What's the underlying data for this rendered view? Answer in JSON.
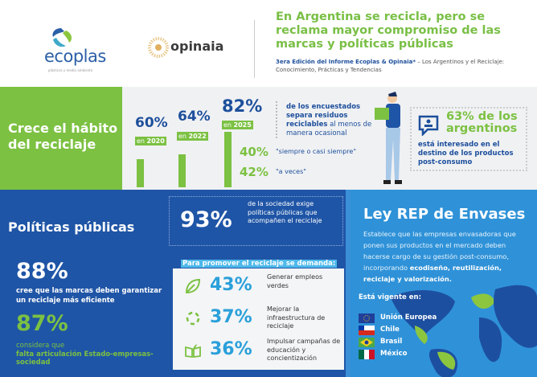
{
  "header": {
    "ecoplas_logo": "ecoplas",
    "ecoplas_tagline": "plásticos y medio ambiente",
    "opinaia_logo": "opinaia",
    "title": "En Argentina se recicla, pero se reclama mayor compromiso de las marcas y políticas públicas",
    "subtitle_bold": "3era Edición del  Informe Ecoplas & Opinaia*",
    "subtitle_rest": " – Los Argentinos y el Reciclaje: Conocimiento, Prácticas y Tendencias"
  },
  "habit": {
    "heading": "Crece el hábito del reciclaje",
    "years": [
      {
        "pct": "60%",
        "prefix": "en",
        "year": "2020",
        "value": 60
      },
      {
        "pct": "64%",
        "prefix": "en",
        "year": "2022",
        "value": 64
      },
      {
        "pct": "82%",
        "prefix": "en",
        "year": "2025",
        "value": 82
      }
    ],
    "desc_1": "de los encuestados separa residuos ",
    "desc_bold": "reciclables",
    "desc_2": " al menos de manera ocasional",
    "breakdown": [
      {
        "pct": "40%",
        "label": "\"siempre o casi siempre\""
      },
      {
        "pct": "42%",
        "label": "\"a veces\""
      }
    ],
    "interest_title": "63% de los argentinos",
    "interest_desc": "está interesado en el destino de los productos post-consumo"
  },
  "policies": {
    "heading": "Políticas públicas",
    "p93": "93%",
    "t93": "de la sociedad exige políticas públicas que acompañen el reciclaje",
    "p88": "88%",
    "t88": "cree que las marcas deben garantizar un reciclaje más eficiente",
    "p87": "87%",
    "t87_1": "considera que",
    "t87_2": "falta articulación Estado-empresas-sociedad",
    "demand_label": "Para promover el reciclaje se demanda:",
    "demands": [
      {
        "icon": "leaf-icon",
        "pct": "43%",
        "text": "Generar empleos verdes"
      },
      {
        "icon": "recycle-icon",
        "pct": "37%",
        "text": "Mejorar la infraestructura de reciclaje"
      },
      {
        "icon": "book-icon",
        "pct": "36%",
        "text": "Impulsar campañas de educación y concientización"
      }
    ]
  },
  "rep": {
    "heading": "Ley REP de Envases",
    "body": "Establece que las empresas envasadoras que ponen sus productos en el mercado deben hacerse cargo de su gestión post-consumo, incorporando ",
    "body_bold": "ecodiseño, reutilización, reciclaje y valorización.",
    "vigente": "Está vigente en:",
    "countries": [
      "Unión Europea",
      "Chile",
      "Brasil",
      "México"
    ]
  },
  "colors": {
    "green": "#7cc142",
    "dark_blue": "#1f55a6",
    "light_blue": "#2f92d8",
    "accent": "#2aa0da"
  }
}
